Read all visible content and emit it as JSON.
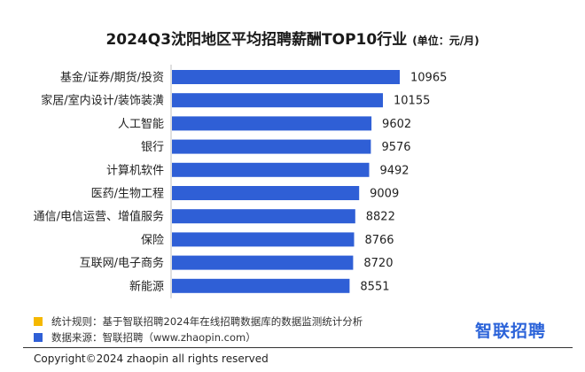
{
  "header": {
    "title": "2024Q3沈阳地区平均招聘薪酬TOP10行业",
    "unit": "(单位：元/月)"
  },
  "chart_data": {
    "type": "bar",
    "orientation": "horizontal",
    "title": "2024Q3沈阳地区平均招聘薪酬TOP10行业",
    "xlabel": "",
    "ylabel": "",
    "grid": false,
    "categories": [
      "基金/证券/期货/投资",
      "家居/室内设计/装饰装潢",
      "人工智能",
      "银行",
      "计算机软件",
      "医药/生物工程",
      "通信/电信运营、增值服务",
      "保险",
      "互联网/电子商务",
      "新能源"
    ],
    "values": [
      10965,
      10155,
      9602,
      9576,
      9492,
      9009,
      8822,
      8766,
      8720,
      8551
    ],
    "bar_color": "#2f5fd6"
  },
  "footer": {
    "note1": "统计规则：基于智联招聘2024年在线招聘数据库的数据监测统计分析",
    "note1_color": "#f5b800",
    "note2": "数据来源：智联招聘（www.zhaopin.com）",
    "note2_color": "#2f5fd6",
    "logo": "智联招聘",
    "copyright": "Copyright©2024 zhaopin all rights reserved"
  }
}
